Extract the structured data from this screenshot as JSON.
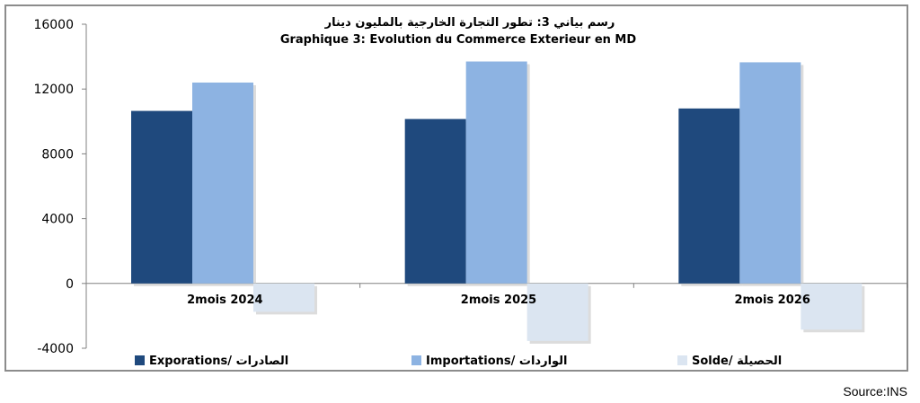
{
  "chart_data": {
    "type": "bar",
    "title_ar": "رسم بياني 3: تطور التجارة الخارجية بالمليون دينار",
    "title_fr": "Graphique 3: Evolution du Commerce Exterieur en MD",
    "categories": [
      "2mois 2024",
      "2mois 2025",
      "2mois 2026"
    ],
    "series": [
      {
        "name": "Exporations/  الصادرات",
        "color": "#1f497d",
        "values": [
          10650,
          10150,
          10800
        ]
      },
      {
        "name": "Importations/ الواردات",
        "color": "#8db3e2",
        "values": [
          12400,
          13700,
          13650
        ]
      },
      {
        "name": "Solde/ الحصيلة",
        "color": "#dbe5f1",
        "values": [
          -1750,
          -3550,
          -2850
        ]
      }
    ],
    "yticks": [
      16000,
      12000,
      8000,
      4000,
      0,
      -4000
    ],
    "tick_labels": [
      "16000",
      "12000",
      "8000",
      "4000",
      "0",
      "-4000"
    ],
    "ylim": [
      -4000,
      16000
    ],
    "grid": false,
    "legend_position": "bottom"
  },
  "source": "Source:INS"
}
